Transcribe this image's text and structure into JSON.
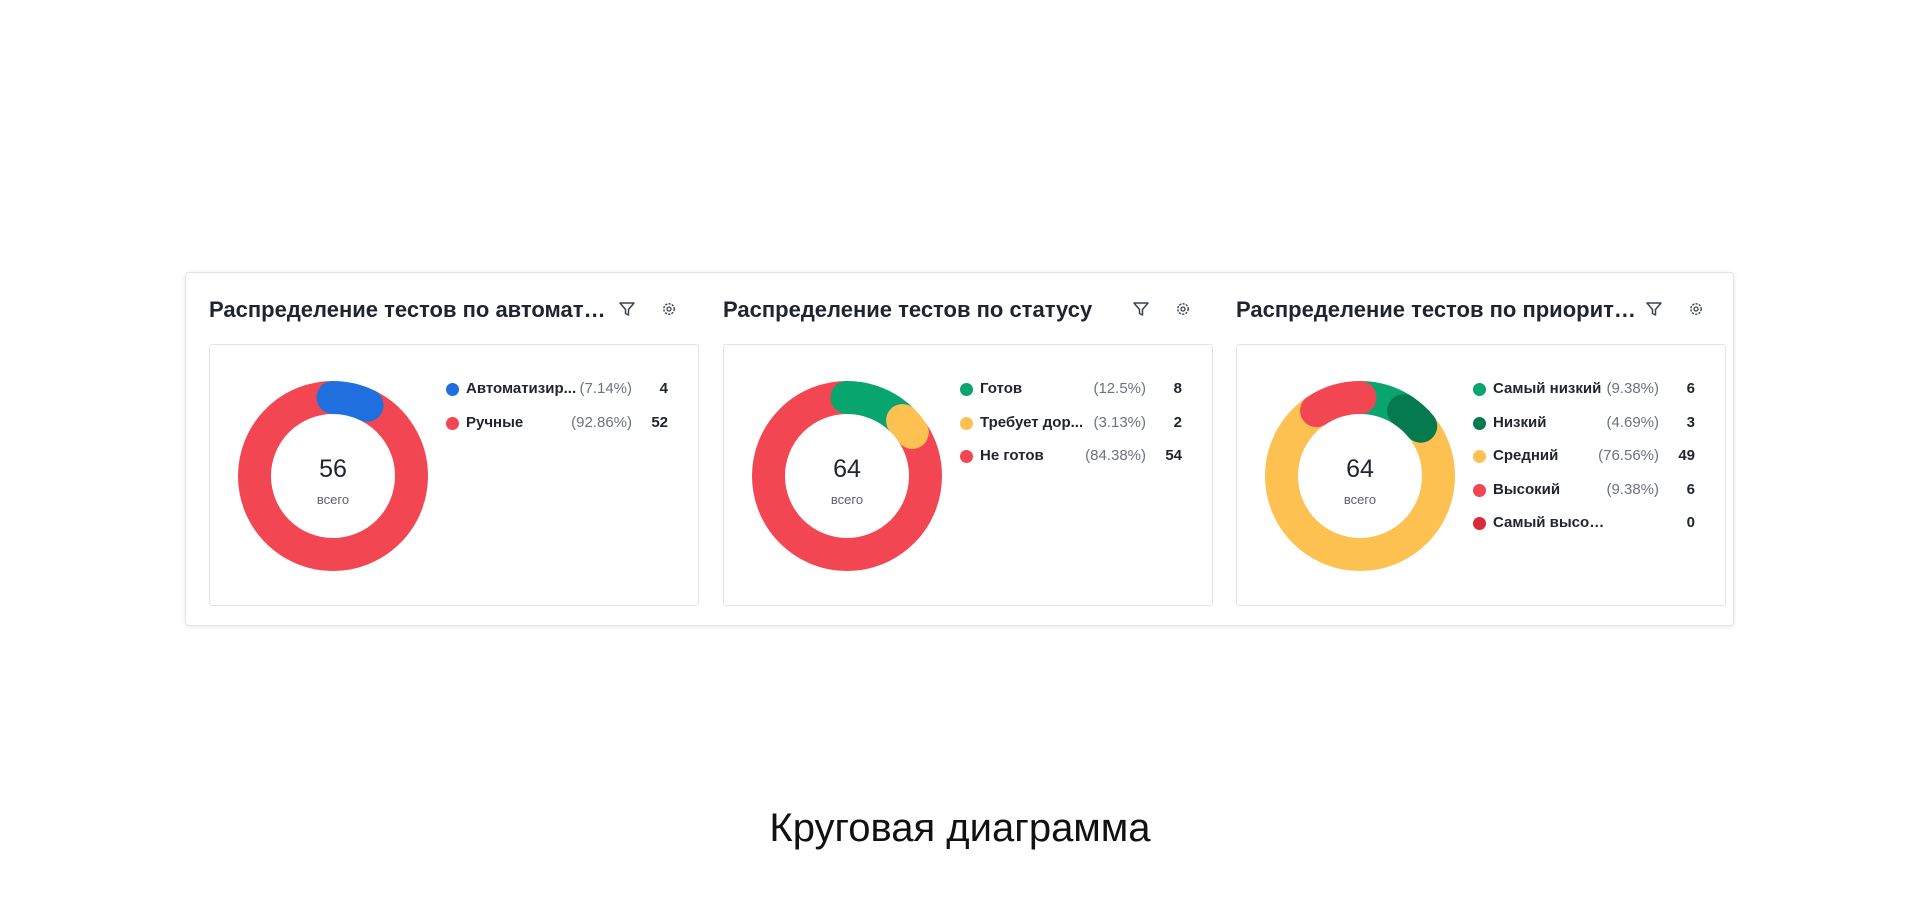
{
  "colors": {
    "blue": "#1f6fde",
    "red": "#f24653",
    "green": "#08a56e",
    "dark_green": "#057a4f",
    "yellow": "#fdc152",
    "dark_red": "#d92a37"
  },
  "icons": {
    "filter": "filter-icon",
    "settings": "gear-icon"
  },
  "widgets": [
    {
      "title": "Распределение тестов по автоматиз...",
      "total": "56",
      "total_caption": "всего",
      "items": [
        {
          "label": "Автоматизир...",
          "pct": "(7.14%)",
          "value": "4",
          "color": "#1f6fde"
        },
        {
          "label": "Ручные",
          "pct": "(92.86%)",
          "value": "52",
          "color": "#f24653"
        }
      ]
    },
    {
      "title": "Распределение тестов по статусу",
      "total": "64",
      "total_caption": "всего",
      "items": [
        {
          "label": "Готов",
          "pct": "(12.5%)",
          "value": "8",
          "color": "#08a56e"
        },
        {
          "label": "Требует дор...",
          "pct": "(3.13%)",
          "value": "2",
          "color": "#fdc152"
        },
        {
          "label": "Не готов",
          "pct": "(84.38%)",
          "value": "54",
          "color": "#f24653"
        }
      ]
    },
    {
      "title": "Распределение тестов по приоритету",
      "total": "64",
      "total_caption": "всего",
      "items": [
        {
          "label": "Самый низкий",
          "pct": "(9.38%)",
          "value": "6",
          "color": "#08a56e"
        },
        {
          "label": "Низкий",
          "pct": "(4.69%)",
          "value": "3",
          "color": "#057a4f"
        },
        {
          "label": "Средний",
          "pct": "(76.56%)",
          "value": "49",
          "color": "#fdc152"
        },
        {
          "label": "Высокий",
          "pct": "(9.38%)",
          "value": "6",
          "color": "#f24653"
        },
        {
          "label": "Самый высокий",
          "pct": "",
          "value": "0",
          "color": "#d92a37"
        }
      ]
    }
  ],
  "chart_data": [
    {
      "type": "pie",
      "title": "Распределение тестов по автоматиз...",
      "categories": [
        "Автоматизир...",
        "Ручные"
      ],
      "values": [
        4,
        52
      ],
      "total": 56
    },
    {
      "type": "pie",
      "title": "Распределение тестов по статусу",
      "categories": [
        "Готов",
        "Требует дор...",
        "Не готов"
      ],
      "values": [
        8,
        2,
        54
      ],
      "total": 64
    },
    {
      "type": "pie",
      "title": "Распределение тестов по приоритету",
      "categories": [
        "Самый низкий",
        "Низкий",
        "Средний",
        "Высокий",
        "Самый высокий"
      ],
      "values": [
        6,
        3,
        49,
        6,
        0
      ],
      "total": 64
    }
  ],
  "caption": "Круговая диаграмма"
}
